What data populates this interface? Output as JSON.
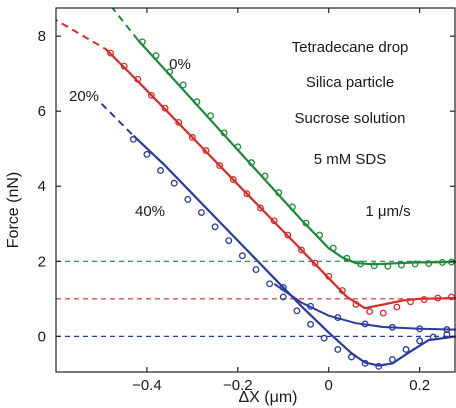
{
  "chart_data": {
    "type": "line",
    "title": "",
    "xlabel": "ΔX (μm)",
    "ylabel": "Force (nN)",
    "xlim": [
      -0.6,
      0.28
    ],
    "ylim": [
      -0.95,
      8.75
    ],
    "xticks": [
      -0.4,
      -0.2,
      0,
      0.2
    ],
    "xtick_labels": [
      "−0.4",
      "−0.2",
      "0",
      "0.2"
    ],
    "yticks": [
      0,
      2,
      4,
      6,
      8
    ],
    "ytick_labels": [
      "0",
      "2",
      "4",
      "6",
      "8"
    ],
    "grid": false,
    "legend": "none",
    "annotations": [
      "Tetradecane drop",
      "Silica particle",
      "Sucrose solution",
      "5 mM SDS",
      "1 μm/s"
    ],
    "series": [
      {
        "name": "0%",
        "color": "#1d8a3a",
        "baseline": 2.0,
        "fit_x": [
          -0.42,
          -0.36,
          -0.3,
          -0.24,
          -0.18,
          -0.12,
          -0.06,
          0.0,
          0.03,
          0.06,
          0.1,
          0.15,
          0.2,
          0.28
        ],
        "fit_y": [
          7.9,
          7.1,
          6.3,
          5.5,
          4.7,
          3.9,
          3.1,
          2.35,
          2.1,
          1.95,
          1.92,
          1.95,
          1.97,
          1.98
        ],
        "points_x": [
          -0.41,
          -0.38,
          -0.35,
          -0.32,
          -0.29,
          -0.26,
          -0.23,
          -0.2,
          -0.17,
          -0.14,
          -0.11,
          -0.08,
          -0.05,
          -0.02,
          0.01,
          0.04,
          0.07,
          0.1,
          0.13,
          0.16,
          0.19,
          0.22,
          0.25,
          0.27
        ],
        "points_y": [
          7.85,
          7.48,
          7.05,
          6.7,
          6.25,
          5.88,
          5.42,
          5.05,
          4.63,
          4.27,
          3.83,
          3.45,
          3.02,
          2.7,
          2.35,
          2.08,
          1.93,
          1.88,
          1.87,
          1.9,
          1.93,
          1.94,
          1.97,
          1.98
        ],
        "extrap_x": [
          -0.61,
          -0.42
        ],
        "extrap_y": [
          10.8,
          7.9
        ]
      },
      {
        "name": "20%",
        "color": "#d92a2a",
        "baseline": 1.0,
        "fit_x": [
          -0.49,
          -0.42,
          -0.36,
          -0.3,
          -0.24,
          -0.18,
          -0.12,
          -0.06,
          0.0,
          0.04,
          0.08,
          0.12,
          0.16,
          0.2,
          0.28
        ],
        "fit_y": [
          7.65,
          6.8,
          6.05,
          5.3,
          4.55,
          3.8,
          3.05,
          2.3,
          1.55,
          1.05,
          0.75,
          0.85,
          0.95,
          1.0,
          1.02
        ],
        "points_x": [
          -0.48,
          -0.45,
          -0.42,
          -0.39,
          -0.36,
          -0.33,
          -0.3,
          -0.27,
          -0.24,
          -0.21,
          -0.18,
          -0.15,
          -0.12,
          -0.09,
          -0.06,
          -0.03,
          0.0,
          0.03,
          0.06,
          0.09,
          0.12,
          0.15,
          0.18,
          0.21,
          0.24,
          0.27
        ],
        "points_y": [
          7.55,
          7.2,
          6.85,
          6.42,
          6.08,
          5.7,
          5.3,
          4.95,
          4.55,
          4.18,
          3.8,
          3.42,
          3.08,
          2.7,
          2.3,
          1.95,
          1.6,
          1.22,
          0.85,
          0.66,
          0.62,
          0.78,
          0.92,
          0.98,
          1.02,
          1.05
        ],
        "extrap_x": [
          -0.61,
          -0.49
        ],
        "extrap_y": [
          8.5,
          7.65
        ]
      },
      {
        "name": "40%",
        "color": "#2a3aa0",
        "baseline": 0.0,
        "fit_x": [
          -0.43,
          -0.36,
          -0.3,
          -0.24,
          -0.18,
          -0.12,
          -0.06,
          0.0,
          0.05,
          0.08,
          0.11,
          0.14,
          0.18,
          0.22,
          0.28
        ],
        "fit_y": [
          5.35,
          4.55,
          3.8,
          3.05,
          2.3,
          1.55,
          0.8,
          0.1,
          -0.45,
          -0.7,
          -0.78,
          -0.72,
          -0.4,
          -0.1,
          0.0
        ],
        "points_x": [
          -0.43,
          -0.4,
          -0.37,
          -0.34,
          -0.31,
          -0.28,
          -0.25,
          -0.22,
          -0.19,
          -0.16,
          -0.13,
          -0.1,
          -0.07,
          -0.04,
          -0.01,
          0.02,
          0.05,
          0.08,
          0.11,
          0.14,
          0.17,
          0.2,
          0.23,
          0.26
        ],
        "points_y": [
          5.25,
          4.85,
          4.42,
          4.08,
          3.65,
          3.3,
          2.92,
          2.55,
          2.15,
          1.78,
          1.4,
          1.05,
          0.68,
          0.32,
          -0.05,
          -0.35,
          -0.55,
          -0.72,
          -0.8,
          -0.62,
          -0.35,
          -0.12,
          -0.02,
          0.05
        ],
        "extrap_x": [
          -0.5,
          -0.43
        ],
        "extrap_y": [
          6.2,
          5.35
        ]
      }
    ],
    "lower_branch": {
      "color": "#2a3aa0",
      "x": [
        -0.12,
        -0.06,
        0.0,
        0.06,
        0.12,
        0.2,
        0.28
      ],
      "y": [
        1.4,
        0.9,
        0.55,
        0.35,
        0.25,
        0.2,
        0.18
      ],
      "points_x": [
        -0.1,
        -0.04,
        0.02,
        0.08,
        0.14,
        0.2,
        0.26
      ],
      "points_y": [
        1.3,
        0.8,
        0.5,
        0.33,
        0.24,
        0.2,
        0.18
      ]
    }
  }
}
